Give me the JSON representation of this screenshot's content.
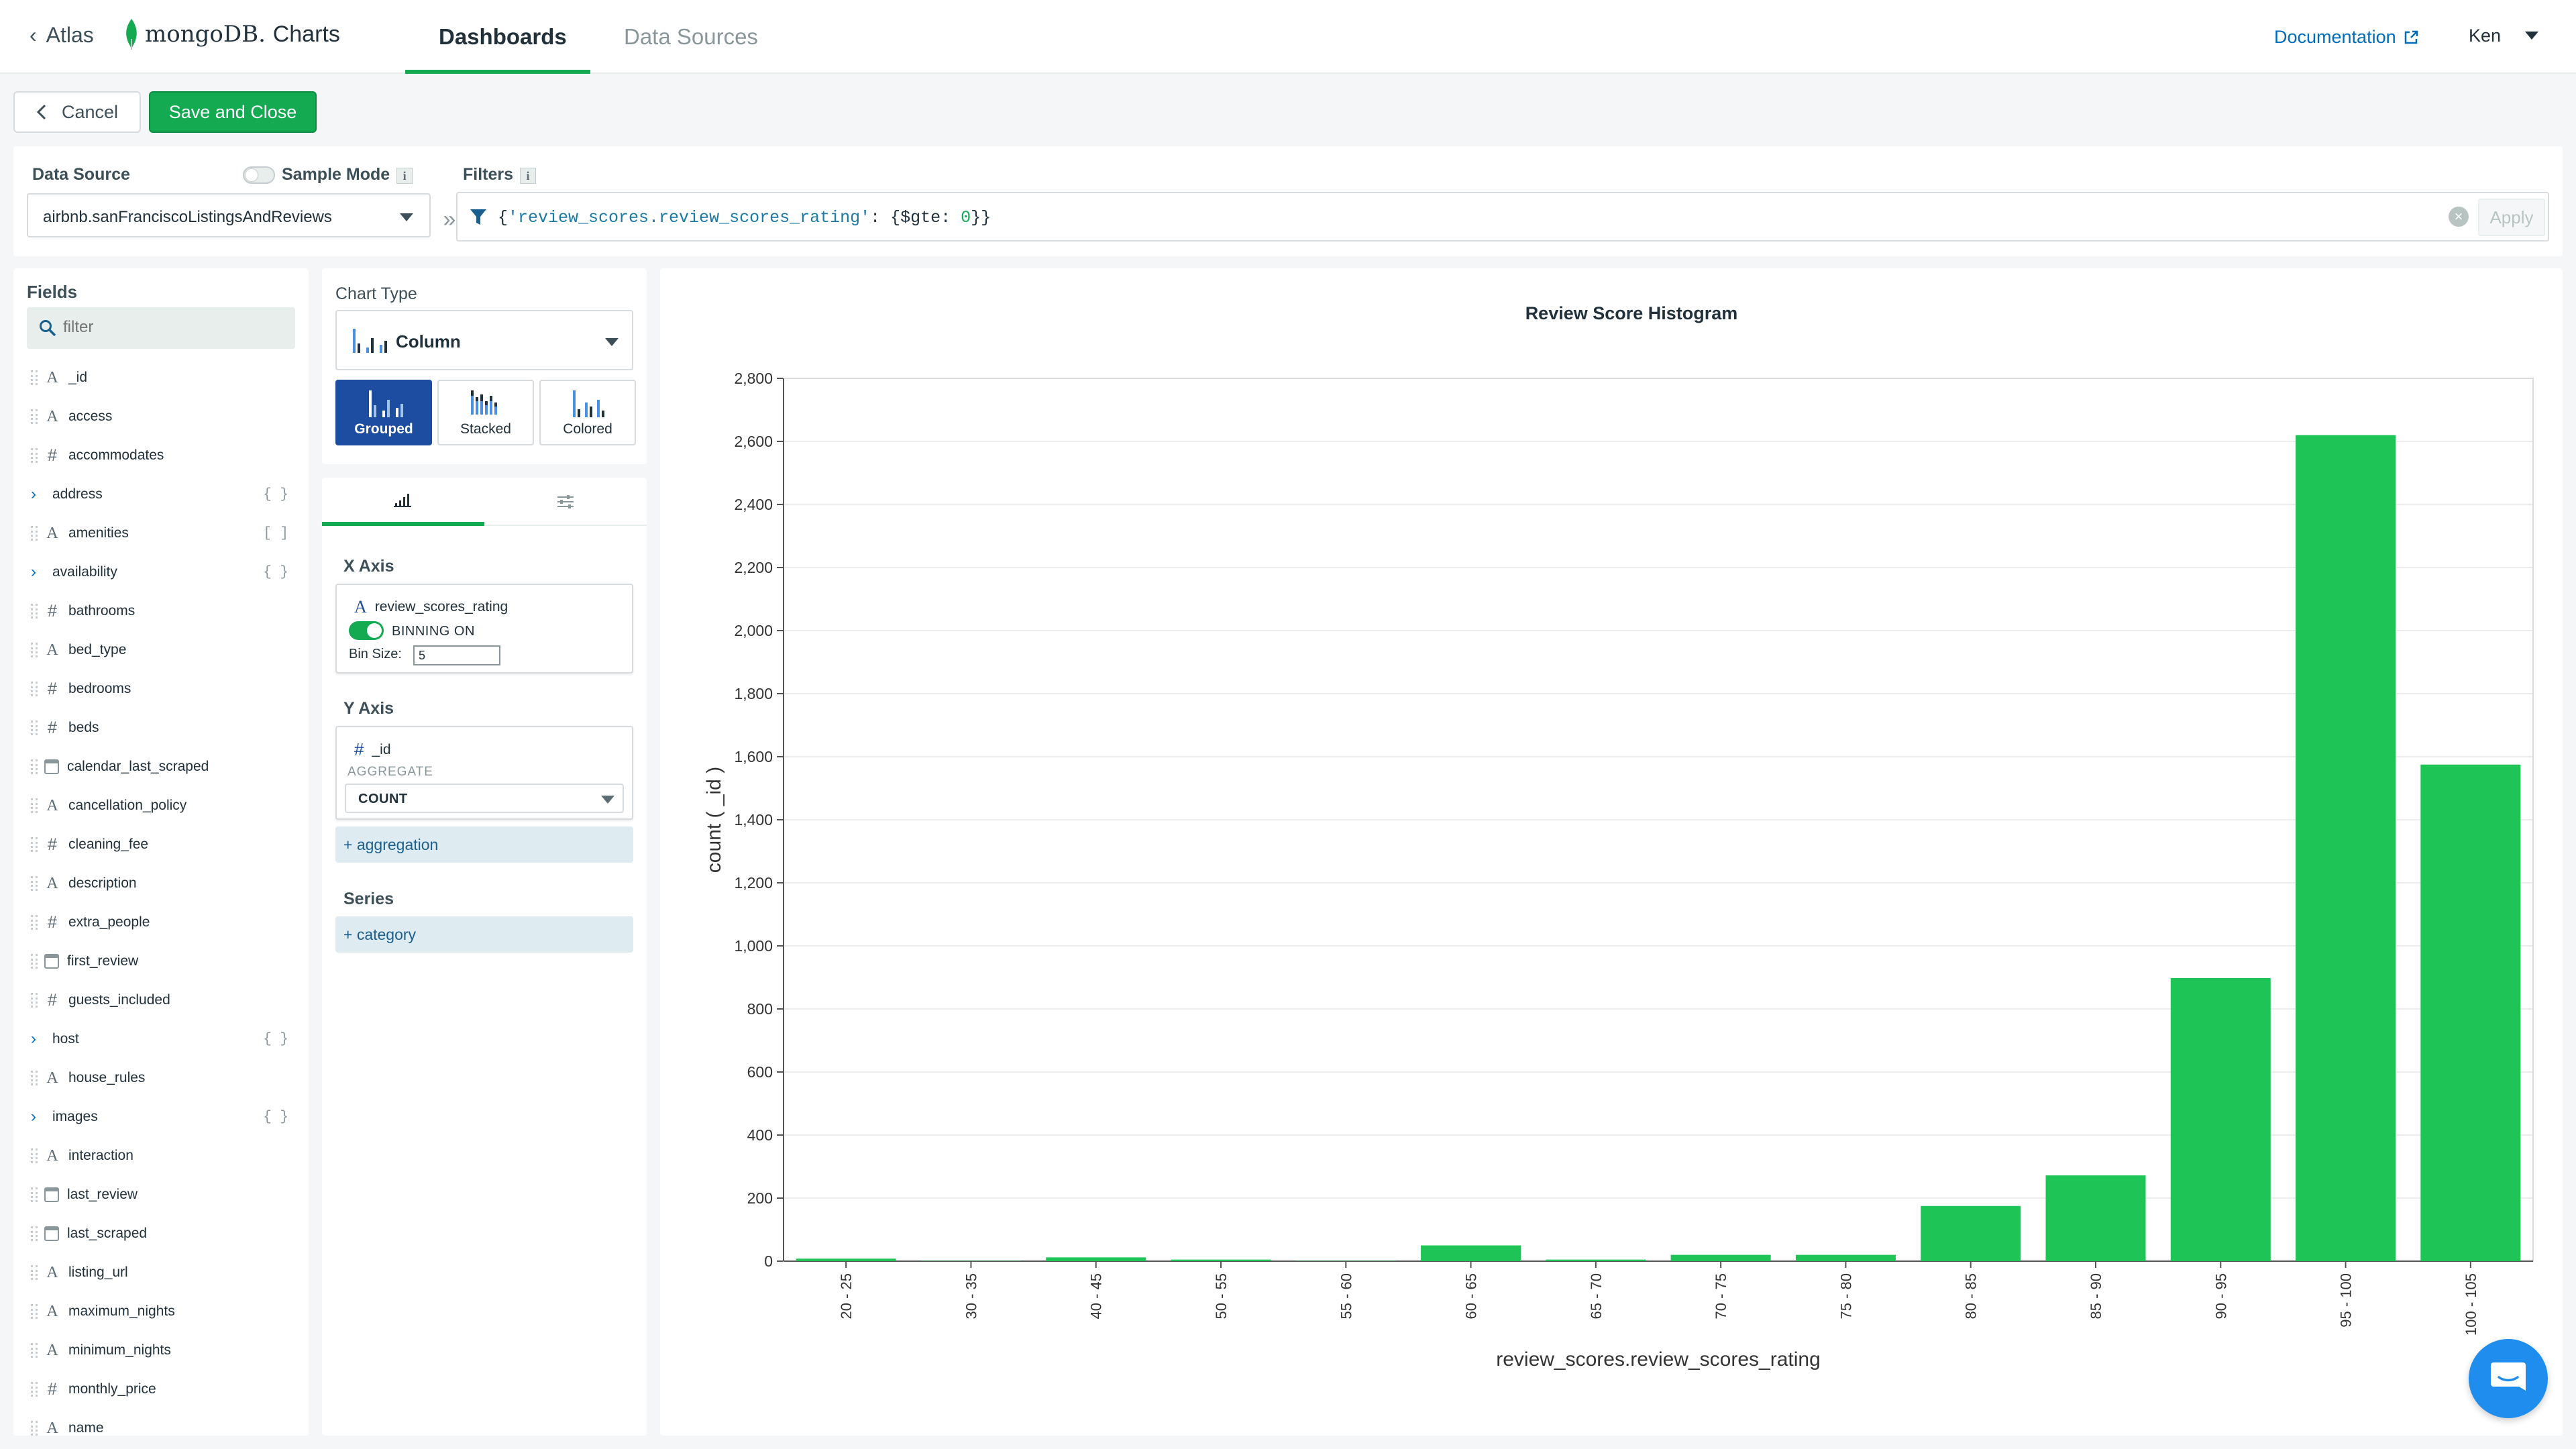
{
  "topbar": {
    "back_label": "Atlas",
    "logo_word": "mongoDB.",
    "logo_product": "Charts",
    "tabs": [
      {
        "label": "Dashboards",
        "active": true
      },
      {
        "label": "Data Sources",
        "active": false
      }
    ],
    "docs_label": "Documentation",
    "user_name": "Ken"
  },
  "actions": {
    "cancel_label": "Cancel",
    "save_label": "Save and Close"
  },
  "data_source": {
    "label": "Data Source",
    "sample_mode_label": "Sample Mode",
    "info_glyph": "i",
    "selected": "airbnb.sanFranciscoListingsAndReviews"
  },
  "filters": {
    "label": "Filters",
    "query_open": "{",
    "query_key": "'review_scores.review_scores_rating'",
    "query_mid": ": {$gte: ",
    "query_num": "0",
    "query_close": "}}",
    "apply_label": "Apply"
  },
  "fields": {
    "title": "Fields",
    "search_placeholder": "filter",
    "items": [
      {
        "name": "_id",
        "type": "string"
      },
      {
        "name": "access",
        "type": "string"
      },
      {
        "name": "accommodates",
        "type": "number"
      },
      {
        "name": "address",
        "type": "object"
      },
      {
        "name": "amenities",
        "type": "array"
      },
      {
        "name": "availability",
        "type": "object"
      },
      {
        "name": "bathrooms",
        "type": "number"
      },
      {
        "name": "bed_type",
        "type": "string"
      },
      {
        "name": "bedrooms",
        "type": "number"
      },
      {
        "name": "beds",
        "type": "number"
      },
      {
        "name": "calendar_last_scraped",
        "type": "date"
      },
      {
        "name": "cancellation_policy",
        "type": "string"
      },
      {
        "name": "cleaning_fee",
        "type": "number"
      },
      {
        "name": "description",
        "type": "string"
      },
      {
        "name": "extra_people",
        "type": "number"
      },
      {
        "name": "first_review",
        "type": "date"
      },
      {
        "name": "guests_included",
        "type": "number"
      },
      {
        "name": "host",
        "type": "object"
      },
      {
        "name": "house_rules",
        "type": "string"
      },
      {
        "name": "images",
        "type": "object"
      },
      {
        "name": "interaction",
        "type": "string"
      },
      {
        "name": "last_review",
        "type": "date"
      },
      {
        "name": "last_scraped",
        "type": "date"
      },
      {
        "name": "listing_url",
        "type": "string"
      },
      {
        "name": "maximum_nights",
        "type": "string"
      },
      {
        "name": "minimum_nights",
        "type": "string"
      },
      {
        "name": "monthly_price",
        "type": "number"
      },
      {
        "name": "name",
        "type": "string"
      }
    ]
  },
  "chart_type": {
    "label": "Chart Type",
    "selected": "Column",
    "variants": [
      {
        "label": "Grouped",
        "active": true
      },
      {
        "label": "Stacked",
        "active": false
      },
      {
        "label": "Colored",
        "active": false
      }
    ]
  },
  "encode": {
    "x_axis_label": "X Axis",
    "x_field": "review_scores_rating",
    "binning_label": "BINNING ON",
    "bin_size_label": "Bin Size:",
    "bin_size_value": "5",
    "y_axis_label": "Y Axis",
    "y_field": "_id",
    "aggregate_label": "AGGREGATE",
    "aggregate_value": "COUNT",
    "add_aggregation": "+ aggregation",
    "series_label": "Series",
    "add_category": "+ category"
  },
  "colors": {
    "accent": "#13aa52",
    "bar": "#1ec455",
    "link": "#006cbc",
    "selected_variant": "#1c4da0"
  },
  "chart_data": {
    "type": "bar",
    "title": "Review Score Histogram",
    "xlabel": "review_scores.review_scores_rating",
    "ylabel": "count ( _id )",
    "categories": [
      "20 - 25",
      "30 - 35",
      "40 - 45",
      "50 - 55",
      "55 - 60",
      "60 - 65",
      "65 - 70",
      "70 - 75",
      "75 - 80",
      "80 - 85",
      "85 - 90",
      "90 - 95",
      "95 - 100",
      "100 - 105"
    ],
    "values": [
      8,
      1,
      12,
      5,
      1,
      50,
      5,
      20,
      20,
      175,
      272,
      898,
      2620,
      1575
    ],
    "ylim": [
      0,
      2800
    ],
    "yticks": [
      0,
      200,
      400,
      600,
      800,
      1000,
      1200,
      1400,
      1600,
      1800,
      2000,
      2200,
      2400,
      2600,
      2800
    ],
    "grid": true
  }
}
